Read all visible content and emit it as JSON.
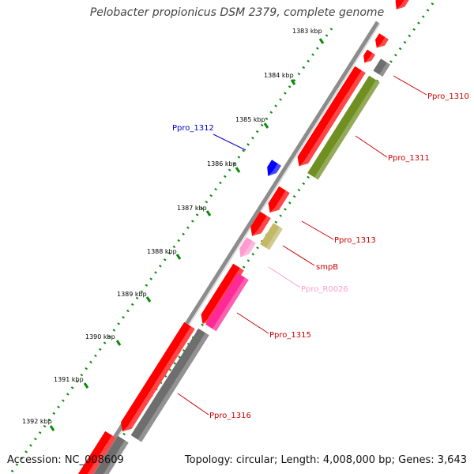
{
  "title": "Pelobacter propionicus DSM 2379, complete genome",
  "footer": {
    "accession": "Accession: NC_008609",
    "summary": "Topology: circular; Length: 4,008,000 bp; Genes: 3,643"
  },
  "colors": {
    "cds": "#ff0000",
    "pseudo_grey": "#6e6e6e",
    "cds_olive": "#6f8f20",
    "cds_blue": "#0000ff",
    "tmrna_khaki": "#c2b868",
    "rna_pink": "#ff9ccf",
    "cds_magenta": "#ff2a95",
    "tick_green": "#0a8a0a",
    "backbone": "#8c8c8c"
  },
  "ruler": {
    "labels": [
      "1383 kbp",
      "1384 kbp",
      "1385 kbp",
      "1386 kbp",
      "1387 kbp",
      "1388 kbp",
      "1389 kbp",
      "1390 kbp",
      "1391 kbp",
      "1392 kbp"
    ]
  },
  "genes": [
    {
      "label": "Ppro_1310",
      "color": "#ff0000"
    },
    {
      "label": "Ppro_1311",
      "color": "#ff0000"
    },
    {
      "label": "Ppro_1312",
      "color": "#0000ff"
    },
    {
      "label": "Ppro_1313",
      "color": "#ff0000"
    },
    {
      "label": "smpB",
      "color": "#ff0000"
    },
    {
      "label": "Ppro_R0026",
      "color": "#ff9ccf"
    },
    {
      "label": "Ppro_1315",
      "color": "#ff0000"
    },
    {
      "label": "Ppro_1316",
      "color": "#ff0000"
    }
  ]
}
